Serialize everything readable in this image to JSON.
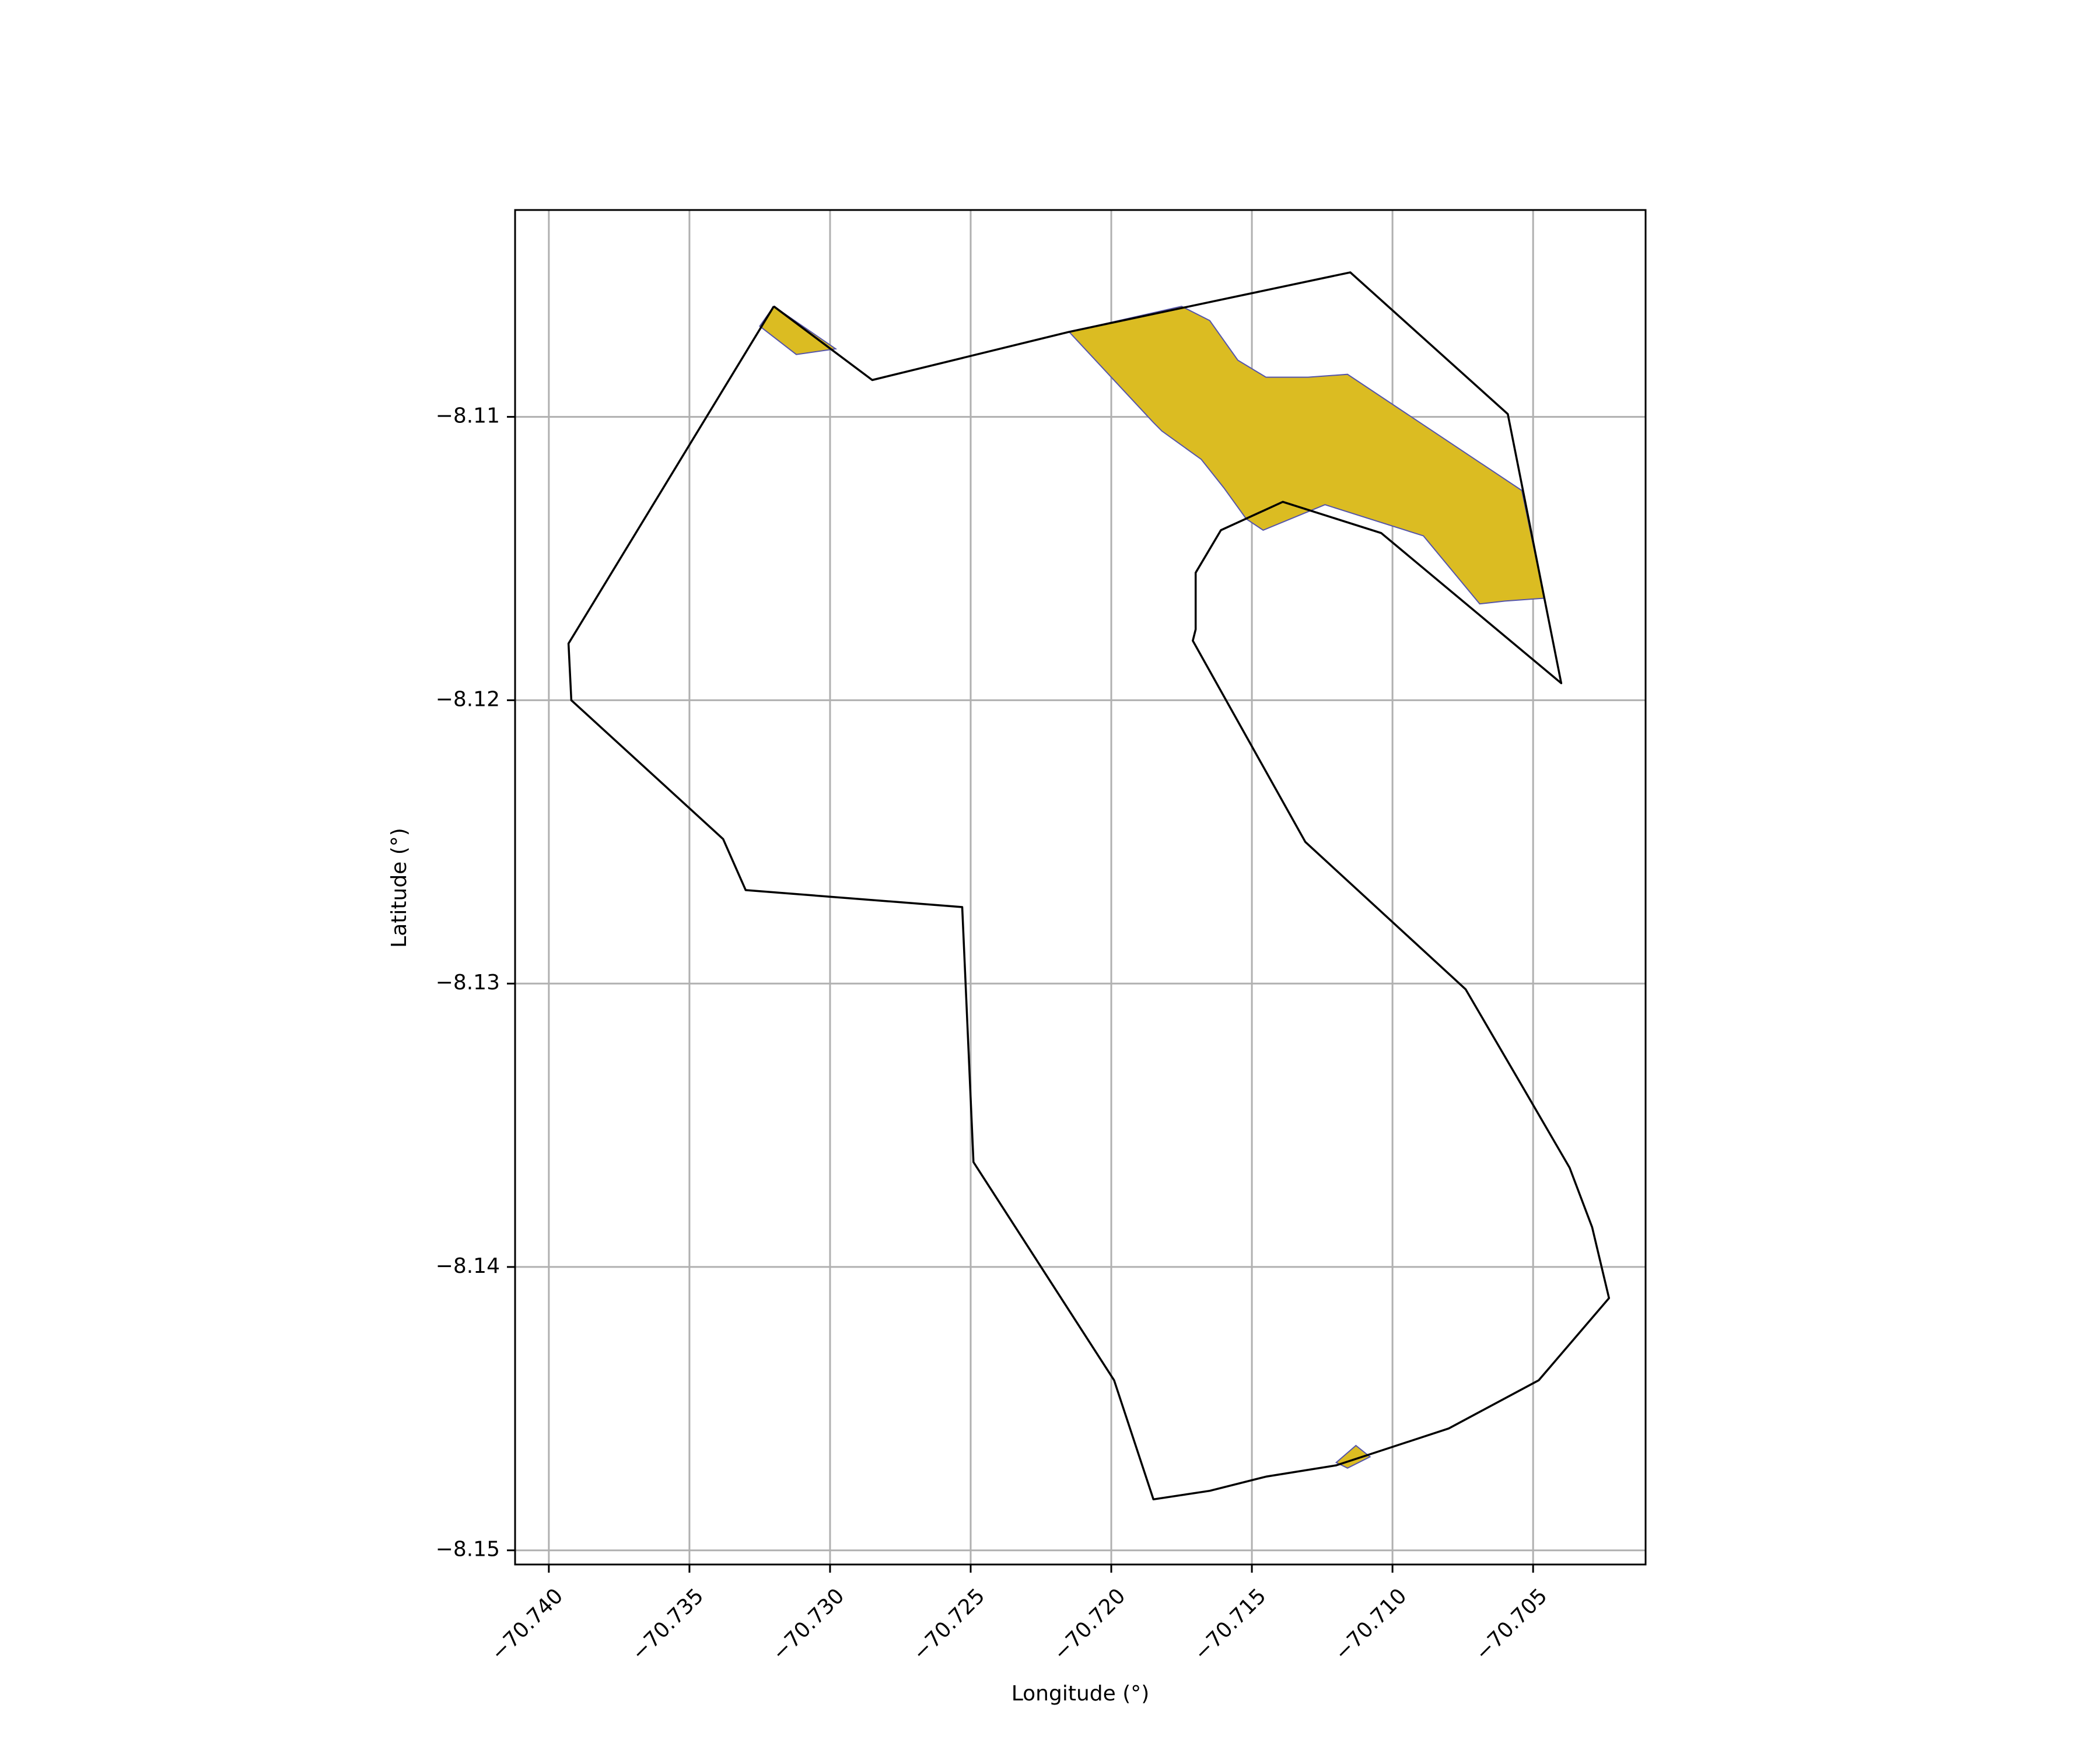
{
  "chart_data": {
    "type": "map",
    "xlabel": "Longitude (°)",
    "ylabel": "Latitude (°)",
    "xlim": [
      -70.7412,
      -70.701
    ],
    "ylim": [
      -8.1505,
      -8.1027
    ],
    "grid": true,
    "x_ticks": [
      {
        "value": -70.74,
        "label": "−70.740"
      },
      {
        "value": -70.735,
        "label": "−70.735"
      },
      {
        "value": -70.73,
        "label": "−70.730"
      },
      {
        "value": -70.725,
        "label": "−70.725"
      },
      {
        "value": -70.72,
        "label": "−70.720"
      },
      {
        "value": -70.715,
        "label": "−70.715"
      },
      {
        "value": -70.71,
        "label": "−70.710"
      },
      {
        "value": -70.705,
        "label": "−70.705"
      }
    ],
    "y_ticks": [
      {
        "value": -8.11,
        "label": "−8.11"
      },
      {
        "value": -8.12,
        "label": "−8.12"
      },
      {
        "value": -8.13,
        "label": "−8.13"
      },
      {
        "value": -8.14,
        "label": "−8.14"
      },
      {
        "value": -8.15,
        "label": "−8.15"
      }
    ],
    "boundary": {
      "stroke": "#000000",
      "points": [
        [
          -70.732,
          -8.1061
        ],
        [
          -70.7285,
          -8.1087
        ],
        [
          -70.7215,
          -8.107
        ],
        [
          -70.7115,
          -8.1049
        ],
        [
          -70.7059,
          -8.1099
        ],
        [
          -70.704,
          -8.1194
        ],
        [
          -70.7104,
          -8.1141
        ],
        [
          -70.7139,
          -8.113
        ],
        [
          -70.7161,
          -8.114
        ],
        [
          -70.717,
          -8.1155
        ],
        [
          -70.717,
          -8.1175
        ],
        [
          -70.7171,
          -8.1179
        ],
        [
          -70.7131,
          -8.125
        ],
        [
          -70.7074,
          -8.1302
        ],
        [
          -70.7054,
          -8.1336
        ],
        [
          -70.7037,
          -8.1365
        ],
        [
          -70.7029,
          -8.1386
        ],
        [
          -70.7023,
          -8.1411
        ],
        [
          -70.7048,
          -8.144
        ],
        [
          -70.708,
          -8.1457
        ],
        [
          -70.712,
          -8.147
        ],
        [
          -70.7145,
          -8.1474
        ],
        [
          -70.7165,
          -8.1479
        ],
        [
          -70.7185,
          -8.1482
        ],
        [
          -70.7199,
          -8.144
        ],
        [
          -70.7249,
          -8.1363
        ],
        [
          -70.7253,
          -8.1273
        ],
        [
          -70.733,
          -8.1267
        ],
        [
          -70.7338,
          -8.1249
        ],
        [
          -70.7392,
          -8.12
        ],
        [
          -70.7393,
          -8.118
        ],
        [
          -70.732,
          -8.1061
        ]
      ]
    },
    "filled_regions": [
      {
        "fill": "#dbbc22",
        "edge": "#5555aa",
        "points": [
          [
            -70.732,
            -8.1061
          ],
          [
            -70.7298,
            -8.1076
          ],
          [
            -70.7312,
            -8.1078
          ],
          [
            -70.7325,
            -8.1068
          ],
          [
            -70.732,
            -8.1061
          ]
        ]
      },
      {
        "fill": "#dbbc22",
        "edge": "#5555aa",
        "points": [
          [
            -70.7215,
            -8.107
          ],
          [
            -70.7175,
            -8.1061
          ],
          [
            -70.7165,
            -8.1066
          ],
          [
            -70.7155,
            -8.108
          ],
          [
            -70.7145,
            -8.1086
          ],
          [
            -70.713,
            -8.1086
          ],
          [
            -70.7116,
            -8.1085
          ],
          [
            -70.7054,
            -8.1126
          ],
          [
            -70.7046,
            -8.1164
          ],
          [
            -70.706,
            -8.1165
          ],
          [
            -70.7069,
            -8.1166
          ],
          [
            -70.7089,
            -8.1142
          ],
          [
            -70.7124,
            -8.1131
          ],
          [
            -70.7146,
            -8.114
          ],
          [
            -70.7152,
            -8.1136
          ],
          [
            -70.716,
            -8.1125
          ],
          [
            -70.7168,
            -8.1115
          ],
          [
            -70.7182,
            -8.1105
          ],
          [
            -70.7185,
            -8.1102
          ],
          [
            -70.7215,
            -8.107
          ]
        ]
      },
      {
        "fill": "#dbbc22",
        "edge": "#5555aa",
        "points": [
          [
            -70.712,
            -8.1469
          ],
          [
            -70.7113,
            -8.1463
          ],
          [
            -70.7108,
            -8.1467
          ],
          [
            -70.7116,
            -8.1471
          ],
          [
            -70.712,
            -8.1469
          ]
        ]
      }
    ]
  }
}
